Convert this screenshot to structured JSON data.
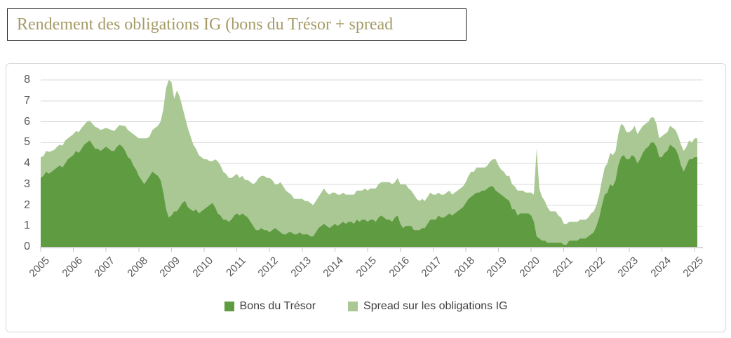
{
  "title": {
    "text": "Rendement des obligations IG (bons du Trésor + spread",
    "color": "#a69a67"
  },
  "chart_data": {
    "type": "area",
    "stacked": true,
    "title": "Rendement des obligations IG (bons du Trésor + spread",
    "xlabel": "",
    "ylabel": "",
    "ylim": [
      0,
      8
    ],
    "y_ticks": [
      0,
      1,
      2,
      3,
      4,
      5,
      6,
      7,
      8
    ],
    "x_tick_labels": [
      "2005",
      "2006",
      "2007",
      "2008",
      "2009",
      "2010",
      "2011",
      "2012",
      "2013",
      "2014",
      "2015",
      "2016",
      "2017",
      "2018",
      "2019",
      "2020",
      "2021",
      "2022",
      "2023",
      "2024",
      "2025"
    ],
    "x_start_year": 2005,
    "points_per_year": 12,
    "grid": "horizontal",
    "legend_position": "bottom-center",
    "style": {
      "grid_color": "#d9d9d9",
      "axis_color": "#c6c6c6",
      "tick_label_color": "#595959",
      "legend_text_color": "#404040"
    },
    "series": [
      {
        "name": "Bons du Trésor",
        "color": "#5f9b41",
        "values": [
          3.3,
          3.4,
          3.6,
          3.5,
          3.6,
          3.7,
          3.8,
          3.9,
          3.8,
          4.0,
          4.2,
          4.3,
          4.4,
          4.6,
          4.5,
          4.7,
          4.9,
          5.0,
          5.1,
          4.9,
          4.7,
          4.7,
          4.6,
          4.7,
          4.8,
          4.7,
          4.6,
          4.6,
          4.8,
          4.9,
          4.8,
          4.6,
          4.3,
          4.2,
          3.9,
          3.7,
          3.4,
          3.2,
          3.0,
          3.2,
          3.4,
          3.6,
          3.5,
          3.4,
          3.2,
          2.6,
          1.8,
          1.4,
          1.5,
          1.7,
          1.7,
          1.9,
          2.1,
          2.2,
          1.9,
          1.8,
          1.7,
          1.8,
          1.6,
          1.7,
          1.8,
          1.9,
          2.0,
          2.1,
          1.9,
          1.6,
          1.5,
          1.3,
          1.3,
          1.2,
          1.3,
          1.5,
          1.6,
          1.5,
          1.6,
          1.5,
          1.4,
          1.2,
          1.0,
          0.8,
          0.8,
          0.9,
          0.8,
          0.8,
          0.7,
          0.8,
          0.9,
          0.8,
          0.7,
          0.6,
          0.6,
          0.7,
          0.7,
          0.6,
          0.6,
          0.7,
          0.6,
          0.6,
          0.6,
          0.5,
          0.5,
          0.7,
          0.9,
          1.0,
          1.1,
          1.0,
          0.9,
          1.0,
          1.1,
          1.0,
          1.1,
          1.2,
          1.1,
          1.2,
          1.2,
          1.1,
          1.3,
          1.2,
          1.3,
          1.3,
          1.2,
          1.3,
          1.3,
          1.2,
          1.4,
          1.5,
          1.4,
          1.3,
          1.3,
          1.2,
          1.4,
          1.5,
          1.1,
          0.9,
          1.0,
          1.0,
          1.0,
          0.8,
          0.8,
          0.8,
          0.9,
          0.9,
          1.1,
          1.3,
          1.3,
          1.3,
          1.5,
          1.4,
          1.4,
          1.5,
          1.6,
          1.5,
          1.6,
          1.7,
          1.8,
          1.9,
          2.1,
          2.3,
          2.4,
          2.5,
          2.6,
          2.6,
          2.7,
          2.7,
          2.8,
          2.9,
          2.9,
          2.7,
          2.6,
          2.5,
          2.4,
          2.3,
          2.2,
          1.8,
          1.8,
          1.5,
          1.6,
          1.6,
          1.6,
          1.6,
          1.5,
          1.2,
          0.5,
          0.4,
          0.3,
          0.3,
          0.2,
          0.2,
          0.2,
          0.2,
          0.2,
          0.2,
          0.1,
          0.1,
          0.3,
          0.3,
          0.3,
          0.3,
          0.4,
          0.4,
          0.4,
          0.5,
          0.6,
          0.7,
          1.0,
          1.4,
          2.0,
          2.5,
          2.6,
          3.0,
          2.9,
          3.2,
          3.9,
          4.3,
          4.4,
          4.2,
          4.2,
          4.4,
          4.3,
          4.0,
          4.2,
          4.5,
          4.7,
          4.8,
          5.0,
          5.0,
          4.8,
          4.3,
          4.3,
          4.5,
          4.6,
          4.9,
          4.8,
          4.7,
          4.4,
          3.9,
          3.6,
          3.9,
          4.2,
          4.2,
          4.3,
          4.3
        ]
      },
      {
        "name": "Spread sur les obligations IG",
        "color": "#a9c893",
        "values": [
          1.0,
          0.95,
          1.0,
          1.05,
          1.0,
          0.95,
          1.0,
          1.0,
          1.05,
          1.1,
          1.0,
          1.0,
          1.0,
          0.95,
          1.0,
          1.0,
          0.95,
          1.0,
          0.95,
          1.0,
          1.05,
          1.0,
          1.0,
          0.95,
          0.9,
          0.95,
          1.0,
          0.95,
          0.9,
          0.95,
          1.0,
          1.2,
          1.3,
          1.3,
          1.5,
          1.6,
          1.8,
          2.0,
          2.2,
          2.0,
          1.9,
          2.0,
          2.2,
          2.4,
          2.8,
          4.0,
          5.8,
          6.6,
          6.4,
          5.4,
          5.8,
          5.3,
          4.6,
          4.0,
          3.8,
          3.5,
          3.2,
          2.9,
          2.8,
          2.6,
          2.4,
          2.3,
          2.1,
          2.0,
          2.3,
          2.5,
          2.4,
          2.3,
          2.2,
          2.1,
          2.0,
          1.9,
          1.9,
          1.8,
          1.8,
          1.7,
          1.8,
          1.9,
          2.0,
          2.3,
          2.5,
          2.5,
          2.6,
          2.5,
          2.6,
          2.4,
          2.1,
          2.2,
          2.4,
          2.3,
          2.1,
          1.9,
          1.8,
          1.7,
          1.7,
          1.6,
          1.7,
          1.6,
          1.6,
          1.6,
          1.5,
          1.5,
          1.5,
          1.6,
          1.7,
          1.6,
          1.6,
          1.6,
          1.5,
          1.5,
          1.4,
          1.4,
          1.4,
          1.3,
          1.3,
          1.4,
          1.4,
          1.5,
          1.4,
          1.5,
          1.5,
          1.5,
          1.5,
          1.6,
          1.6,
          1.6,
          1.7,
          1.8,
          1.8,
          1.8,
          1.7,
          1.8,
          1.9,
          2.1,
          2.0,
          1.8,
          1.7,
          1.7,
          1.5,
          1.4,
          1.4,
          1.3,
          1.3,
          1.3,
          1.2,
          1.2,
          1.1,
          1.1,
          1.1,
          1.1,
          1.1,
          1.0,
          1.0,
          1.0,
          1.0,
          1.0,
          1.0,
          1.1,
          1.2,
          1.1,
          1.2,
          1.2,
          1.1,
          1.1,
          1.1,
          1.2,
          1.3,
          1.5,
          1.3,
          1.2,
          1.2,
          1.1,
          1.2,
          1.2,
          1.1,
          1.2,
          1.1,
          1.1,
          1.0,
          1.0,
          1.1,
          1.3,
          4.2,
          2.4,
          2.1,
          1.9,
          1.7,
          1.5,
          1.5,
          1.5,
          1.3,
          1.2,
          1.0,
          1.0,
          0.9,
          0.9,
          0.9,
          0.9,
          0.9,
          0.9,
          0.9,
          0.9,
          1.0,
          1.0,
          1.0,
          1.1,
          1.2,
          1.3,
          1.4,
          1.5,
          1.5,
          1.4,
          1.5,
          1.6,
          1.4,
          1.3,
          1.3,
          1.2,
          1.5,
          1.4,
          1.4,
          1.3,
          1.2,
          1.2,
          1.2,
          1.2,
          1.1,
          0.9,
          1.0,
          0.9,
          0.9,
          0.9,
          0.9,
          0.9,
          0.9,
          1.0,
          1.0,
          0.9,
          0.9,
          0.8,
          0.9,
          0.9
        ]
      }
    ]
  }
}
